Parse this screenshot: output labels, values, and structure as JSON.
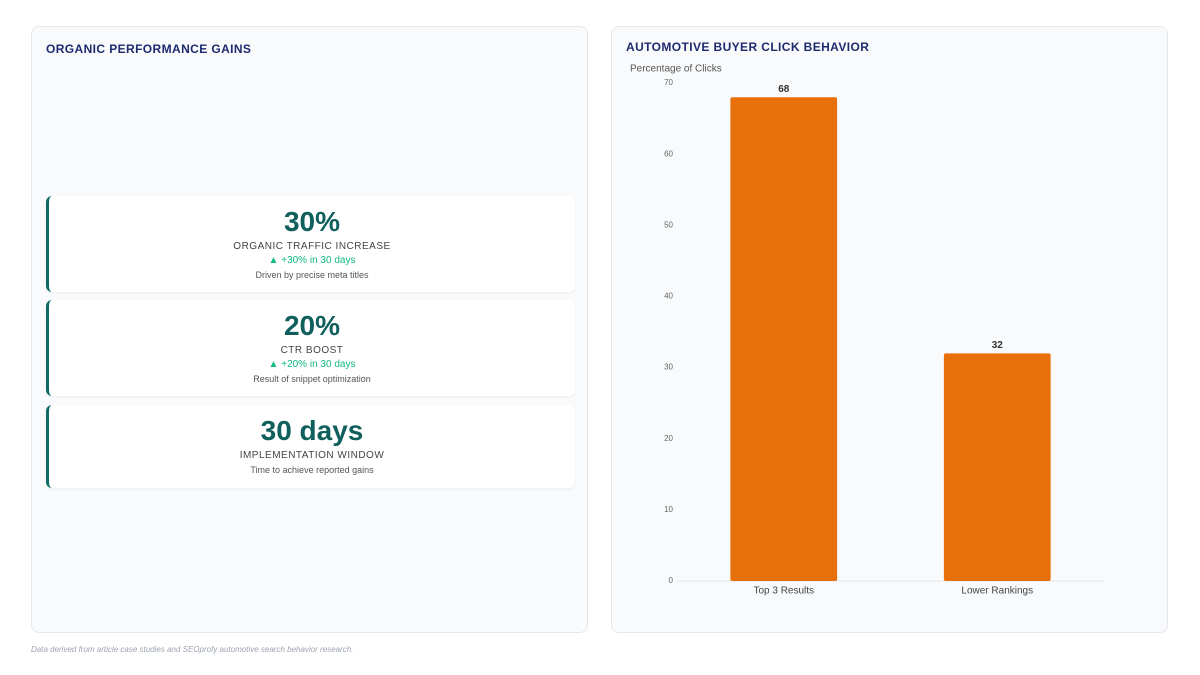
{
  "left_panel": {
    "title": "ORGANIC PERFORMANCE GAINS",
    "kpis": [
      {
        "value": "30%",
        "label": "ORGANIC TRAFFIC INCREASE",
        "change": "▲ +30% in 30 days",
        "note": "Driven by precise meta titles"
      },
      {
        "value": "20%",
        "label": "CTR BOOST",
        "change": "▲ +20% in 30 days",
        "note": "Result of snippet optimization"
      },
      {
        "value": "30 days",
        "label": "IMPLEMENTATION WINDOW",
        "note": "Time to achieve reported gains"
      }
    ]
  },
  "chart_data": {
    "type": "bar",
    "title": "AUTOMOTIVE BUYER CLICK BEHAVIOR",
    "y_label": "Percentage of Clicks",
    "categories": [
      "Top 3 Results",
      "Lower Rankings"
    ],
    "values": [
      68,
      32
    ],
    "color": "#e8700a",
    "ylim": [
      0,
      70
    ],
    "yticks": [
      0,
      10,
      20,
      30,
      40,
      50,
      60,
      70
    ],
    "grid": false
  },
  "footer": "Data derived from article case studies and SEOprofy automotive search behavior research."
}
